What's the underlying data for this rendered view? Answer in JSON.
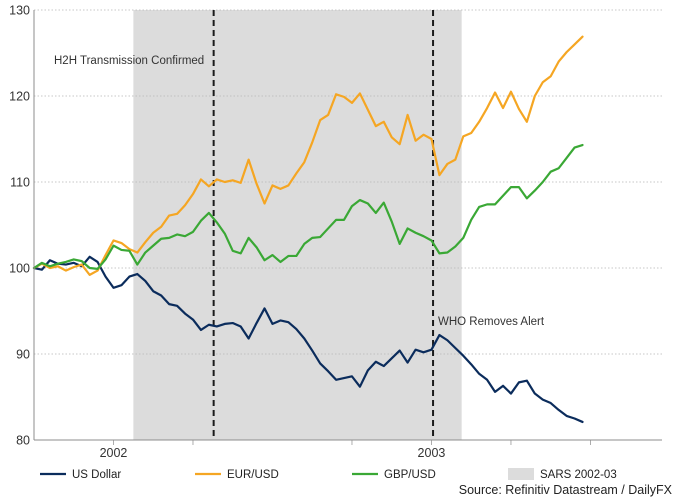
{
  "chart_data": {
    "type": "line",
    "title": "",
    "xlabel": "",
    "ylabel": "",
    "ylim": [
      80,
      130
    ],
    "yticks": [
      80,
      90,
      100,
      110,
      120,
      130
    ],
    "x_index_range": [
      0,
      79
    ],
    "x_tick_labels": [
      {
        "label": "2002",
        "x": 10
      },
      {
        "label": "2003",
        "x": 50
      }
    ],
    "minor_x_ticks": [
      20,
      40,
      60,
      70
    ],
    "gridlines": "horizontal-dotted",
    "shaded_regions": [
      {
        "name": "SARS 2002-03",
        "x_start": 12.5,
        "x_end": 53.8,
        "color": "#dcdcdc"
      }
    ],
    "vertical_lines": [
      {
        "label": "H2H Transmission Confirmed",
        "x": 22.6,
        "style": "dashed"
      },
      {
        "label": "WHO Removes Alert",
        "x": 50.2,
        "style": "dashed"
      }
    ],
    "series": [
      {
        "name": "US Dollar",
        "color": "#0b2c5c",
        "values": [
          100.0,
          99.8,
          100.9,
          100.5,
          100.4,
          100.6,
          100.2,
          101.3,
          100.7,
          99.0,
          97.7,
          98.0,
          99.0,
          99.3,
          98.5,
          97.3,
          96.8,
          95.8,
          95.6,
          94.7,
          94.0,
          92.8,
          93.4,
          93.2,
          93.5,
          93.6,
          93.2,
          91.8,
          93.6,
          95.3,
          93.5,
          93.9,
          93.7,
          92.9,
          91.8,
          90.4,
          88.9,
          88.0,
          87.0,
          87.2,
          87.4,
          86.2,
          88.1,
          89.1,
          88.6,
          89.5,
          90.4,
          89.0,
          90.5,
          90.2,
          90.5,
          92.2,
          91.6,
          90.7,
          89.8,
          88.8,
          87.7,
          87.0,
          85.6,
          86.3,
          85.4,
          86.7,
          86.9,
          85.4,
          84.7,
          84.3,
          83.5,
          82.8,
          82.5,
          82.1
        ]
      },
      {
        "name": "EUR/USD",
        "color": "#f5a623",
        "values": [
          100.0,
          100.5,
          100.0,
          100.2,
          99.7,
          100.1,
          100.4,
          99.2,
          99.7,
          101.5,
          103.2,
          102.9,
          102.2,
          101.8,
          103.0,
          104.1,
          104.8,
          106.1,
          106.3,
          107.3,
          108.6,
          110.3,
          109.5,
          110.3,
          110.0,
          110.2,
          109.9,
          112.6,
          109.8,
          107.5,
          109.6,
          109.2,
          109.6,
          111.0,
          112.3,
          114.6,
          117.2,
          117.8,
          120.2,
          119.9,
          119.2,
          120.3,
          118.4,
          116.5,
          117.0,
          115.2,
          114.4,
          117.8,
          114.8,
          115.5,
          115.0,
          110.8,
          112.1,
          112.6,
          115.3,
          115.7,
          117.0,
          118.6,
          120.4,
          118.6,
          120.5,
          118.5,
          117.0,
          120.0,
          121.6,
          122.3,
          124.0,
          125.1,
          126.0,
          126.9
        ]
      },
      {
        "name": "GBP/USD",
        "color": "#3aa835",
        "values": [
          100.0,
          100.6,
          100.2,
          100.5,
          100.7,
          101.0,
          100.8,
          100.0,
          99.9,
          101.0,
          102.6,
          102.1,
          102.0,
          100.4,
          101.8,
          102.6,
          103.4,
          103.5,
          103.9,
          103.7,
          104.2,
          105.5,
          106.4,
          105.3,
          104.0,
          102.0,
          101.7,
          103.5,
          102.4,
          100.9,
          101.5,
          100.7,
          101.4,
          101.4,
          102.8,
          103.5,
          103.6,
          104.6,
          105.6,
          105.6,
          107.2,
          107.9,
          107.5,
          106.4,
          107.6,
          105.4,
          102.8,
          104.6,
          104.1,
          103.7,
          103.2,
          101.7,
          101.8,
          102.5,
          103.5,
          105.6,
          107.1,
          107.4,
          107.4,
          108.4,
          109.4,
          109.4,
          108.1,
          109.0,
          110.0,
          111.2,
          111.6,
          112.8,
          114.0,
          114.3
        ]
      }
    ],
    "legend": [
      {
        "label": "US Dollar",
        "kind": "line",
        "color": "#0b2c5c"
      },
      {
        "label": "EUR/USD",
        "kind": "line",
        "color": "#f5a623"
      },
      {
        "label": "GBP/USD",
        "kind": "line",
        "color": "#3aa835"
      },
      {
        "label": "SARS 2002-03",
        "kind": "area",
        "color": "#dcdcdc"
      }
    ],
    "legend_position": "bottom",
    "source": "Source: Refinitiv Datastream / DailyFX"
  }
}
